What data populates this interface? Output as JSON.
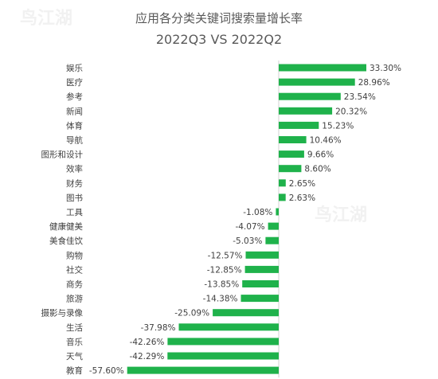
{
  "chart_data": {
    "type": "bar",
    "orientation": "horizontal",
    "title": "应用各分类关键词搜索量增长率",
    "subtitle": "2022Q3 VS 2022Q2",
    "unit": "%",
    "bar_color": "#1fb24b",
    "categories": [
      "娱乐",
      "医疗",
      "参考",
      "新闻",
      "体育",
      "导航",
      "图形和设计",
      "效率",
      "财务",
      "图书",
      "工具",
      "健康健美",
      "美食佳饮",
      "购物",
      "社交",
      "商务",
      "旅游",
      "摄影与录像",
      "生活",
      "音乐",
      "天气",
      "教育"
    ],
    "values": [
      33.3,
      28.96,
      23.54,
      20.32,
      15.23,
      10.46,
      9.66,
      8.6,
      2.65,
      2.63,
      -1.08,
      -4.07,
      -5.03,
      -12.57,
      -12.85,
      -13.85,
      -14.38,
      -25.09,
      -37.98,
      -42.26,
      -42.29,
      -57.6
    ],
    "labels": [
      "33.30%",
      "28.96%",
      "23.54%",
      "20.32%",
      "15.23%",
      "10.46%",
      "9.66%",
      "8.60%",
      "2.65%",
      "2.63%",
      "-1.08%",
      "-4.07%",
      "-5.03%",
      "-12.57%",
      "-12.85%",
      "-13.85%",
      "-14.38%",
      "-25.09%",
      "-37.98%",
      "-42.26%",
      "-42.29%",
      "-57.60%"
    ],
    "xlim": [
      -57.6,
      33.3
    ],
    "grid": false,
    "legend": "none"
  },
  "watermark": "鸟江湖"
}
